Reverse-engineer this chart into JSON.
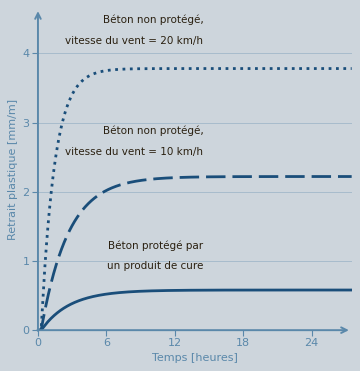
{
  "background_color": "#cdd5dc",
  "line_color": "#1a4e7a",
  "label_color": "#2a2010",
  "axis_color": "#5a88aa",
  "ylabel": "Retrait plastique [mm/m]",
  "xlabel": "Temps [heures]",
  "ylim": [
    0,
    4.65
  ],
  "xlim": [
    0,
    27.5
  ],
  "yticks": [
    0,
    1,
    2,
    3,
    4
  ],
  "xticks": [
    0,
    6,
    12,
    18,
    24
  ],
  "label1_line1": "Béton non protégé,",
  "label1_line2": "vitesse du vent = 20 km/h",
  "label2_line1": "Béton non protégé,",
  "label2_line2": "vitesse du vent = 10 km/h",
  "label3_line1": "Béton protégé par",
  "label3_line2": "un produit de cure",
  "curve1_asymptote": 3.78,
  "curve2_asymptote": 2.22,
  "curve3_asymptote": 0.58,
  "curve_rate1": 0.85,
  "curve_rate2": 0.42,
  "curve_rate3": 0.4,
  "curve_x0": 0.28,
  "font_size_tick": 8,
  "font_size_label": 7.5,
  "font_size_axis": 8
}
